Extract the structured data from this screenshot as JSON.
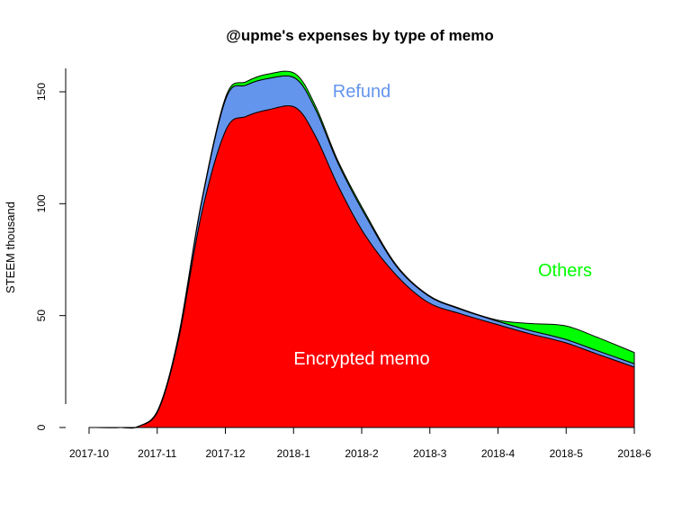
{
  "chart_data": {
    "type": "area",
    "stacked": true,
    "title": "@upme's expenses by type of memo",
    "xlabel": "",
    "ylabel": "STEEM thousand",
    "x_ticks": [
      "2017-10",
      "2017-11",
      "2017-12",
      "2018-1",
      "2018-2",
      "2018-3",
      "2018-4",
      "2018-5",
      "2018-6"
    ],
    "y_ticks": [
      0,
      50,
      100,
      150
    ],
    "ylim": [
      0,
      160
    ],
    "x": [
      "2017-10-01",
      "2017-10-15",
      "2017-10-23",
      "2017-11-01",
      "2017-11-10",
      "2017-11-20",
      "2017-12-01",
      "2017-12-10",
      "2017-12-20",
      "2018-01-01",
      "2018-01-10",
      "2018-01-20",
      "2018-02-01",
      "2018-02-15",
      "2018-03-01",
      "2018-03-15",
      "2018-04-01",
      "2018-04-15",
      "2018-05-01",
      "2018-05-15",
      "2018-06-01"
    ],
    "series": [
      {
        "name": "Encrypted memo",
        "color": "#ff0000",
        "values": [
          0,
          0,
          0.5,
          8,
          40,
          95,
          133,
          139,
          142,
          143,
          130,
          108,
          86,
          68,
          56,
          51,
          46,
          42,
          38,
          33,
          27
        ]
      },
      {
        "name": "Refund",
        "color": "#6495ed",
        "values": [
          0,
          0,
          0,
          0.5,
          1.5,
          5,
          14,
          14,
          14,
          13,
          12,
          10,
          9,
          4,
          3,
          2,
          1.5,
          1.5,
          1.5,
          1.5,
          1.5
        ]
      },
      {
        "name": "Others",
        "color": "#00ff00",
        "values": [
          0,
          0,
          0,
          0,
          0,
          0.5,
          1,
          1.5,
          2,
          2,
          1.5,
          1,
          1,
          0.5,
          0.3,
          0.3,
          0.5,
          3,
          6,
          6,
          5
        ]
      }
    ],
    "annotations": [
      {
        "text": "Refund",
        "series": "Refund",
        "color": "#6495ed"
      },
      {
        "text": "Others",
        "series": "Others",
        "color": "#00ff00"
      },
      {
        "text": "Encrypted memo",
        "series": "Encrypted memo",
        "color": "#ffffff"
      }
    ],
    "grid": false,
    "legend": "none"
  }
}
